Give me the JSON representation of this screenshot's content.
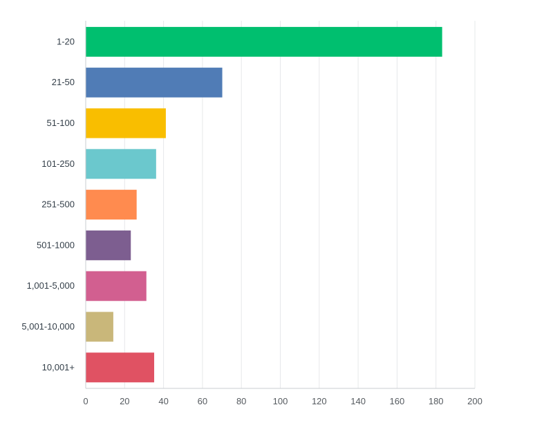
{
  "chart_data": {
    "type": "bar",
    "orientation": "horizontal",
    "categories": [
      "1-20",
      "21-50",
      "51-100",
      "101-250",
      "251-500",
      "501-1000",
      "1,001-5,000",
      "5,001-10,000",
      "10,001+"
    ],
    "values": [
      183,
      70,
      41,
      36,
      26,
      23,
      31,
      14,
      35
    ],
    "colors": [
      "#00bf6f",
      "#507cb6",
      "#f9be00",
      "#6bc8cd",
      "#ff8b4f",
      "#7d5e90",
      "#d25f90",
      "#c9b77a",
      "#e05263"
    ],
    "xlim": [
      0,
      200
    ],
    "xticks": [
      0,
      20,
      40,
      60,
      80,
      100,
      120,
      140,
      160,
      180,
      200
    ],
    "grid": true,
    "legend": "none"
  }
}
